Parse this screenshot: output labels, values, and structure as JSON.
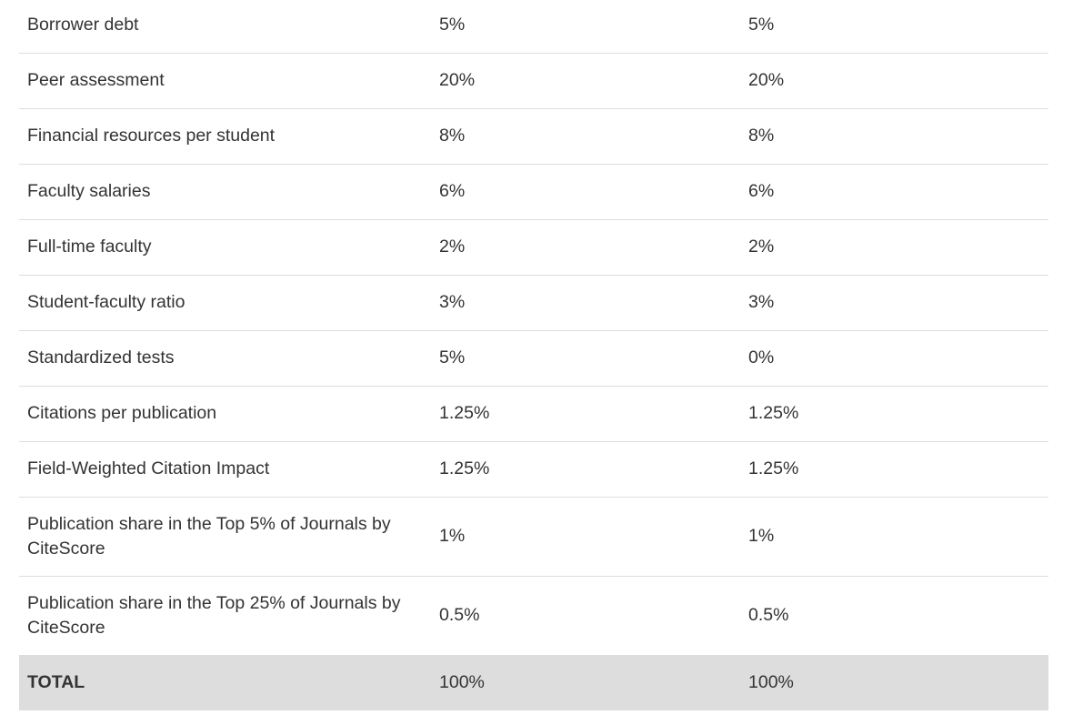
{
  "table": {
    "rows": [
      [
        "Borrower debt",
        "5%",
        "5%"
      ],
      [
        "Peer assessment",
        "20%",
        "20%"
      ],
      [
        "Financial resources per student",
        "8%",
        "8%"
      ],
      [
        "Faculty salaries",
        "6%",
        "6%"
      ],
      [
        "Full-time faculty",
        "2%",
        "2%"
      ],
      [
        "Student-faculty ratio",
        "3%",
        "3%"
      ],
      [
        "Standardized tests",
        "5%",
        "0%"
      ],
      [
        "Citations per publication",
        "1.25%",
        "1.25%"
      ],
      [
        "Field-Weighted Citation Impact",
        "1.25%",
        "1.25%"
      ],
      [
        "Publication share in the Top 5% of Journals by CiteScore",
        "1%",
        "1%"
      ],
      [
        "Publication share in the Top 25% of Journals by CiteScore",
        "0.5%",
        "0.5%"
      ]
    ],
    "total": [
      "TOTAL",
      "100%",
      "100%"
    ]
  }
}
